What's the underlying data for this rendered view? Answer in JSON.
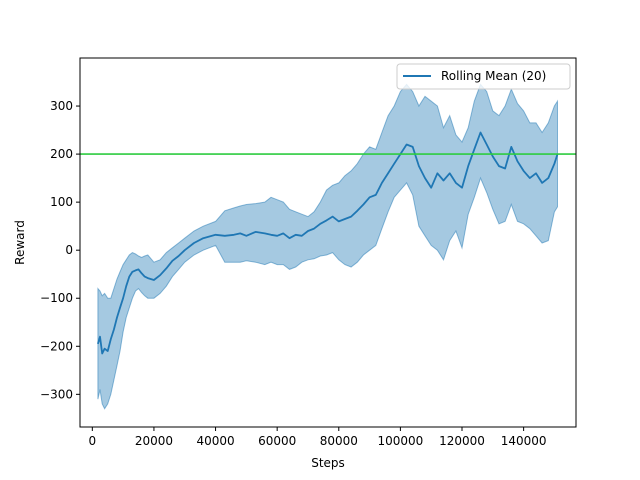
{
  "chart_data": {
    "type": "line",
    "xlabel": "Steps",
    "ylabel": "Reward",
    "xlim": [
      -4000,
      157000
    ],
    "ylim": [
      -368,
      400
    ],
    "x_ticks": [
      0,
      20000,
      40000,
      60000,
      80000,
      100000,
      120000,
      140000
    ],
    "y_ticks": [
      -300,
      -200,
      -100,
      0,
      100,
      200,
      300
    ],
    "grid": false,
    "legend_position": "top-right",
    "reference_line": {
      "y": 200,
      "color": "#2ecc40"
    },
    "series": [
      {
        "name": "Rolling Mean (20)",
        "color": "#1f77b4",
        "band_color": "#1f77b4",
        "points": [
          [
            1800,
            -195,
            -310,
            -80
          ],
          [
            2500,
            -180,
            -290,
            -85
          ],
          [
            3200,
            -215,
            -320,
            -95
          ],
          [
            4000,
            -205,
            -330,
            -90
          ],
          [
            5000,
            -210,
            -320,
            -100
          ],
          [
            6000,
            -185,
            -300,
            -100
          ],
          [
            7000,
            -165,
            -270,
            -80
          ],
          [
            8000,
            -140,
            -240,
            -60
          ],
          [
            9000,
            -120,
            -210,
            -45
          ],
          [
            10000,
            -100,
            -170,
            -30
          ],
          [
            11000,
            -75,
            -140,
            -20
          ],
          [
            12000,
            -55,
            -120,
            -10
          ],
          [
            13000,
            -45,
            -100,
            -5
          ],
          [
            14000,
            -42,
            -85,
            -8
          ],
          [
            15000,
            -40,
            -80,
            -12
          ],
          [
            16000,
            -48,
            -88,
            -15
          ],
          [
            17000,
            -55,
            -95,
            -12
          ],
          [
            18000,
            -58,
            -100,
            -10
          ],
          [
            20000,
            -62,
            -100,
            -25
          ],
          [
            22000,
            -52,
            -90,
            -20
          ],
          [
            24000,
            -38,
            -75,
            -5
          ],
          [
            26000,
            -22,
            -55,
            5
          ],
          [
            28000,
            -12,
            -40,
            15
          ],
          [
            30000,
            0,
            -25,
            25
          ],
          [
            33000,
            15,
            -10,
            40
          ],
          [
            36000,
            25,
            0,
            50
          ],
          [
            40000,
            32,
            10,
            60
          ],
          [
            43000,
            30,
            -25,
            82
          ],
          [
            46000,
            32,
            -25,
            88
          ],
          [
            48000,
            35,
            -25,
            92
          ],
          [
            50000,
            30,
            -22,
            95
          ],
          [
            53000,
            38,
            -25,
            97
          ],
          [
            56000,
            35,
            -30,
            100
          ],
          [
            58000,
            32,
            -25,
            110
          ],
          [
            60000,
            30,
            -30,
            105
          ],
          [
            62000,
            35,
            -30,
            100
          ],
          [
            64000,
            25,
            -40,
            85
          ],
          [
            66000,
            32,
            -35,
            80
          ],
          [
            68000,
            30,
            -25,
            75
          ],
          [
            70000,
            40,
            -20,
            70
          ],
          [
            72000,
            45,
            -18,
            80
          ],
          [
            74000,
            55,
            -12,
            100
          ],
          [
            76000,
            62,
            -10,
            125
          ],
          [
            78000,
            70,
            -5,
            135
          ],
          [
            80000,
            60,
            -20,
            140
          ],
          [
            82000,
            65,
            -30,
            155
          ],
          [
            84000,
            70,
            -35,
            165
          ],
          [
            86000,
            82,
            -25,
            180
          ],
          [
            88000,
            95,
            -10,
            200
          ],
          [
            90000,
            110,
            0,
            215
          ],
          [
            92000,
            115,
            10,
            210
          ],
          [
            94000,
            140,
            45,
            245
          ],
          [
            96000,
            160,
            80,
            280
          ],
          [
            98000,
            180,
            110,
            300
          ],
          [
            100000,
            200,
            125,
            330
          ],
          [
            102000,
            220,
            140,
            345
          ],
          [
            104000,
            215,
            115,
            330
          ],
          [
            106000,
            175,
            50,
            300
          ],
          [
            108000,
            150,
            30,
            320
          ],
          [
            110000,
            130,
            10,
            310
          ],
          [
            112000,
            160,
            0,
            300
          ],
          [
            114000,
            145,
            -20,
            255
          ],
          [
            116000,
            160,
            20,
            280
          ],
          [
            118000,
            140,
            40,
            240
          ],
          [
            120000,
            130,
            5,
            225
          ],
          [
            122000,
            175,
            75,
            255
          ],
          [
            124000,
            210,
            110,
            310
          ],
          [
            126000,
            245,
            150,
            345
          ],
          [
            128000,
            220,
            120,
            330
          ],
          [
            130000,
            195,
            85,
            290
          ],
          [
            132000,
            175,
            55,
            280
          ],
          [
            134000,
            170,
            60,
            300
          ],
          [
            136000,
            215,
            95,
            335
          ],
          [
            138000,
            185,
            60,
            305
          ],
          [
            140000,
            165,
            55,
            290
          ],
          [
            142000,
            150,
            45,
            265
          ],
          [
            144000,
            160,
            30,
            265
          ],
          [
            146000,
            140,
            15,
            245
          ],
          [
            148000,
            150,
            20,
            265
          ],
          [
            150000,
            180,
            80,
            300
          ],
          [
            151000,
            200,
            90,
            310
          ]
        ]
      }
    ]
  }
}
